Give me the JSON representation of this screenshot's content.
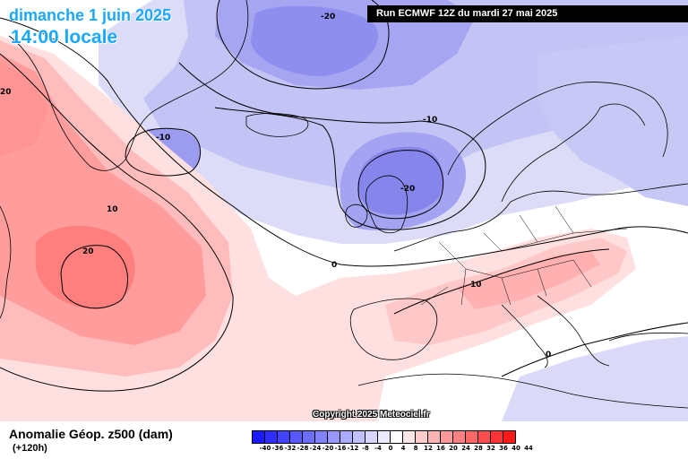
{
  "header": {
    "date_line": "dimanche 1 juin 2025",
    "time_line": "14:00 locale",
    "run_info": "Run ECMWF 12Z du mardi 27 mai 2025"
  },
  "copyright": "Copyright 2025 Meteociel.fr",
  "footer": {
    "variable": "Anomalie Géop. z500 (dam)",
    "lead": "(+120h)"
  },
  "legend": {
    "ticks": [
      "-40",
      "-36",
      "-32",
      "-28",
      "-24",
      "-20",
      "-16",
      "-12",
      "-8",
      "-4",
      "0",
      "4",
      "8",
      "12",
      "16",
      "20",
      "24",
      "28",
      "32",
      "36",
      "40",
      "44"
    ],
    "colors": [
      "#1a1aff",
      "#2e2eff",
      "#4343ff",
      "#5858ff",
      "#6d6dff",
      "#8282ff",
      "#9797ff",
      "#acacff",
      "#c1c1ff",
      "#d6d6ff",
      "#ebebff",
      "#ffffff",
      "#ffe6e6",
      "#ffcccc",
      "#ffb3b3",
      "#ff9999",
      "#ff8080",
      "#ff6666",
      "#ff4d4d",
      "#ff3333",
      "#ff1a1a"
    ]
  },
  "map_labels": [
    {
      "id": "minus20-north",
      "text": "-20"
    },
    {
      "id": "minus10-greenland",
      "text": "-10"
    },
    {
      "id": "minus10-norway",
      "text": "-10"
    },
    {
      "id": "minus20-north-sea",
      "text": "-20"
    },
    {
      "id": "plus20-west",
      "text": "20"
    },
    {
      "id": "plus10-atlantic",
      "text": "10"
    },
    {
      "id": "plus20-atlantic",
      "text": "20"
    },
    {
      "id": "zero-atlantic",
      "text": "0"
    },
    {
      "id": "plus10-europe",
      "text": "10"
    },
    {
      "id": "zero-mediterranean",
      "text": "0"
    }
  ],
  "colors": {
    "title_blue": "#19a8ff",
    "positive_anomaly": "#ff7a7a",
    "negative_anomaly": "#7b7bf0",
    "coastline": "#000000"
  }
}
